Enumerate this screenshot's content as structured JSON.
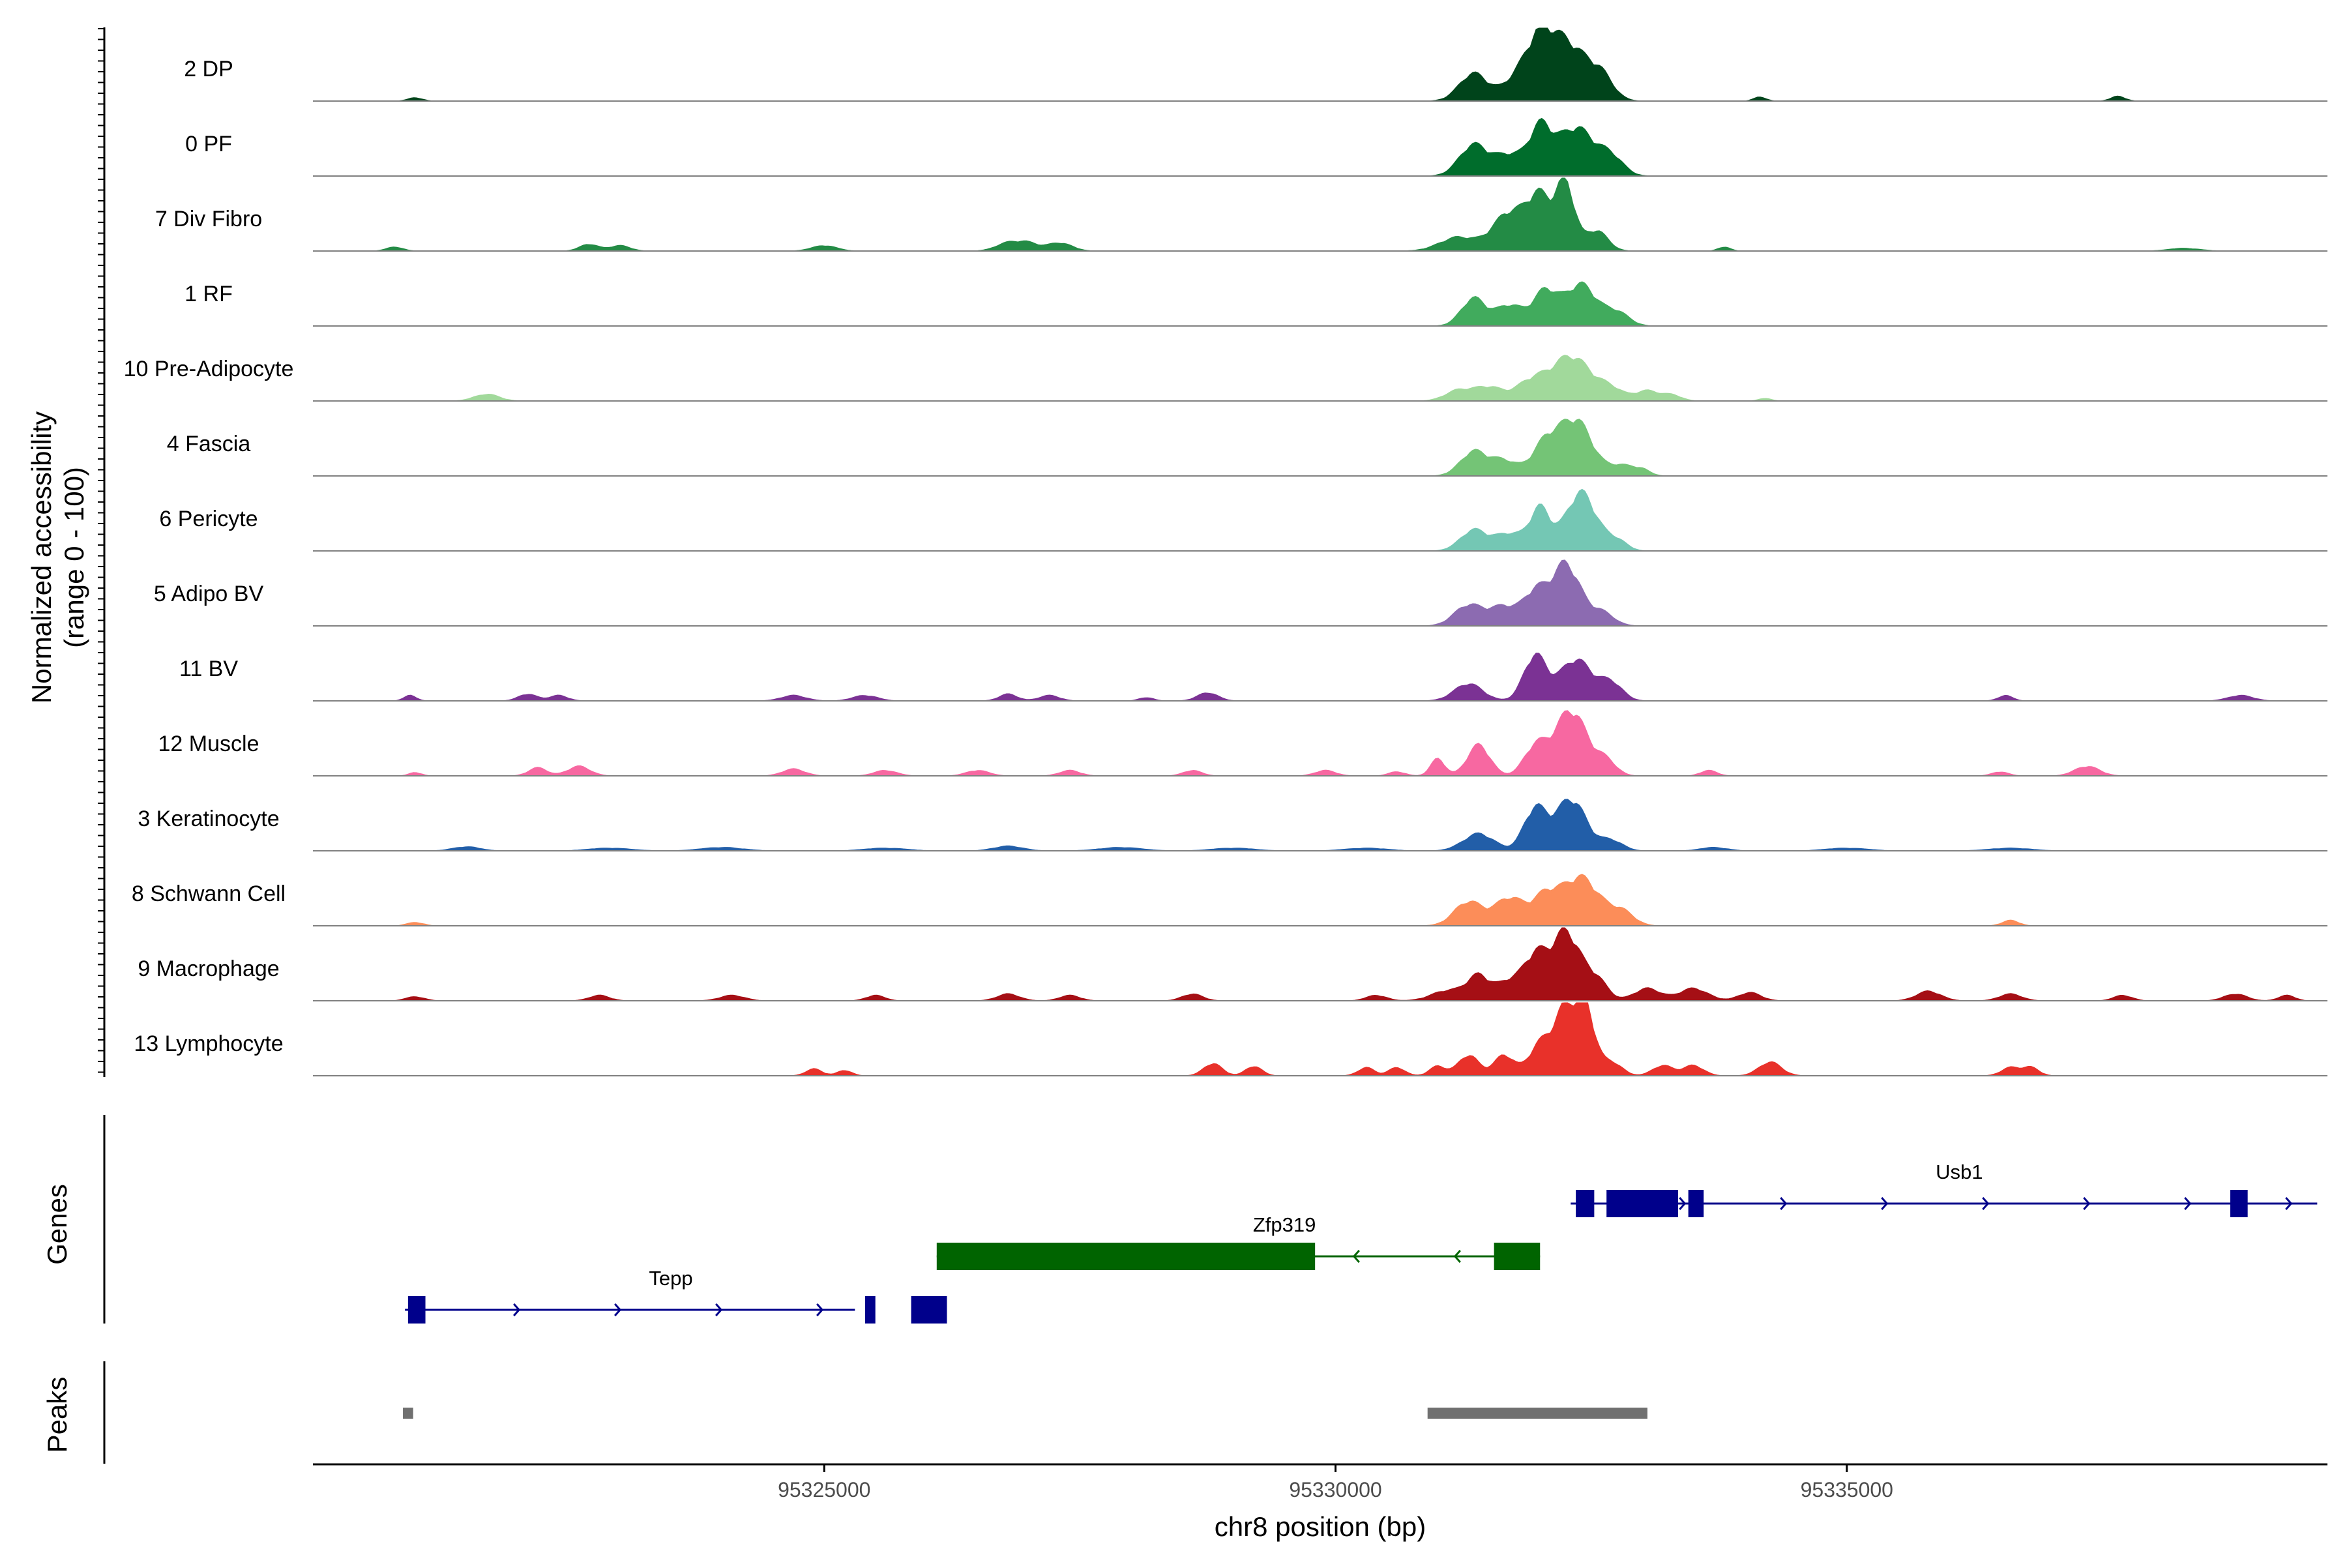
{
  "chart_data": {
    "type": "area",
    "title": "",
    "xlabel": "chr8 position (bp)",
    "ylabel_line1": "Normalized accessibility",
    "ylabel_line2": "(range 0 - 100)",
    "genes_label": "Genes",
    "peaks_label": "Peaks",
    "xlim": [
      95320000,
      95339700
    ],
    "ylim": [
      0,
      100
    ],
    "x_ticks": [
      95325000,
      95330000,
      95335000
    ],
    "x_tick_labels": [
      "95325000",
      "95330000",
      "95335000"
    ],
    "series": [
      {
        "name": "2 DP",
        "color": "#00441b",
        "bumps": [
          [
            95321000,
            5,
            70
          ],
          [
            95331350,
            40,
            140
          ],
          [
            95331800,
            35,
            150
          ],
          [
            95332000,
            55,
            120
          ],
          [
            95332250,
            85,
            200
          ],
          [
            95332600,
            30,
            120
          ],
          [
            95334150,
            6,
            60
          ],
          [
            95337650,
            7,
            70
          ]
        ]
      },
      {
        "name": "0 PF",
        "color": "#006d2c",
        "bumps": [
          [
            95331350,
            45,
            140
          ],
          [
            95331700,
            30,
            140
          ],
          [
            95332000,
            65,
            110
          ],
          [
            95332350,
            70,
            180
          ],
          [
            95332700,
            25,
            120
          ]
        ]
      },
      {
        "name": "7 Div Fibro",
        "color": "#238b45",
        "bumps": [
          [
            95320800,
            6,
            80
          ],
          [
            95322700,
            10,
            90
          ],
          [
            95323000,
            8,
            100
          ],
          [
            95325000,
            8,
            120
          ],
          [
            95326800,
            12,
            120
          ],
          [
            95327000,
            10,
            100
          ],
          [
            95327300,
            12,
            120
          ],
          [
            95331200,
            20,
            180
          ],
          [
            95331700,
            55,
            160
          ],
          [
            95332000,
            75,
            120
          ],
          [
            95332250,
            95,
            90
          ],
          [
            95332550,
            30,
            110
          ],
          [
            95333800,
            6,
            60
          ],
          [
            95338300,
            4,
            150
          ]
        ]
      },
      {
        "name": "1 RF",
        "color": "#41ab5d",
        "bumps": [
          [
            95331350,
            40,
            120
          ],
          [
            95331700,
            30,
            130
          ],
          [
            95332050,
            50,
            120
          ],
          [
            95332400,
            60,
            150
          ],
          [
            95332750,
            20,
            120
          ]
        ]
      },
      {
        "name": "10 Pre-Adipocyte",
        "color": "#a1d99b",
        "bumps": [
          [
            95321700,
            10,
            120
          ],
          [
            95331200,
            15,
            130
          ],
          [
            95331500,
            20,
            140
          ],
          [
            95331900,
            25,
            140
          ],
          [
            95332300,
            65,
            200
          ],
          [
            95332700,
            15,
            120
          ],
          [
            95333050,
            15,
            120
          ],
          [
            95333300,
            8,
            90
          ],
          [
            95334200,
            4,
            60
          ]
        ]
      },
      {
        "name": "4 Fascia",
        "color": "#74c476",
        "bumps": [
          [
            95331350,
            35,
            130
          ],
          [
            95331650,
            22,
            130
          ],
          [
            95332050,
            45,
            130
          ],
          [
            95332350,
            80,
            160
          ],
          [
            95332800,
            15,
            120
          ],
          [
            95333000,
            8,
            80
          ]
        ]
      },
      {
        "name": "6 Pericyte",
        "color": "#74c7b4",
        "bumps": [
          [
            95331350,
            30,
            130
          ],
          [
            95331700,
            25,
            140
          ],
          [
            95332000,
            60,
            100
          ],
          [
            95332400,
            85,
            150
          ],
          [
            95332750,
            15,
            100
          ]
        ]
      },
      {
        "name": "5 Adipo BV",
        "color": "#8c6bb1",
        "bumps": [
          [
            95331300,
            30,
            140
          ],
          [
            95331650,
            28,
            140
          ],
          [
            95331950,
            45,
            110
          ],
          [
            95332250,
            90,
            140
          ],
          [
            95332600,
            20,
            120
          ]
        ]
      },
      {
        "name": "11 BV",
        "color": "#7b3294",
        "bumps": [
          [
            95320950,
            8,
            60
          ],
          [
            95322100,
            10,
            90
          ],
          [
            95322400,
            8,
            90
          ],
          [
            95324700,
            8,
            120
          ],
          [
            95325400,
            8,
            120
          ],
          [
            95326800,
            10,
            90
          ],
          [
            95327200,
            8,
            100
          ],
          [
            95328150,
            5,
            70
          ],
          [
            95328750,
            12,
            100
          ],
          [
            95331300,
            25,
            140
          ],
          [
            95331950,
            65,
            110
          ],
          [
            95332350,
            60,
            160
          ],
          [
            95332700,
            25,
            110
          ],
          [
            95336550,
            8,
            70
          ],
          [
            95338850,
            8,
            120
          ]
        ]
      },
      {
        "name": "12 Muscle",
        "color": "#f768a1",
        "bumps": [
          [
            95321000,
            5,
            60
          ],
          [
            95322200,
            12,
            90
          ],
          [
            95322600,
            14,
            110
          ],
          [
            95324700,
            10,
            110
          ],
          [
            95325600,
            8,
            110
          ],
          [
            95326500,
            8,
            110
          ],
          [
            95327400,
            8,
            100
          ],
          [
            95328600,
            8,
            90
          ],
          [
            95329900,
            8,
            100
          ],
          [
            95330600,
            6,
            80
          ],
          [
            95331000,
            25,
            70
          ],
          [
            95331400,
            45,
            110
          ],
          [
            95331950,
            40,
            110
          ],
          [
            95332300,
            95,
            160
          ],
          [
            95332650,
            20,
            100
          ],
          [
            95333650,
            8,
            80
          ],
          [
            95336500,
            6,
            80
          ],
          [
            95337350,
            14,
            120
          ]
        ]
      },
      {
        "name": "3 Keratinocyte",
        "color": "#225ea8",
        "bumps": [
          [
            95321500,
            6,
            130
          ],
          [
            95322900,
            4,
            200
          ],
          [
            95324000,
            5,
            200
          ],
          [
            95325600,
            4,
            200
          ],
          [
            95326800,
            7,
            140
          ],
          [
            95327900,
            5,
            200
          ],
          [
            95329000,
            4,
            200
          ],
          [
            95330300,
            4,
            200
          ],
          [
            95331400,
            25,
            150
          ],
          [
            95331950,
            60,
            110
          ],
          [
            95332300,
            75,
            150
          ],
          [
            95332700,
            15,
            110
          ],
          [
            95333700,
            5,
            130
          ],
          [
            95335000,
            4,
            200
          ],
          [
            95336600,
            4,
            200
          ]
        ]
      },
      {
        "name": "8 Schwann Cell",
        "color": "#fc8d59",
        "bumps": [
          [
            95321000,
            5,
            80
          ],
          [
            95331300,
            35,
            140
          ],
          [
            95331700,
            40,
            140
          ],
          [
            95332050,
            40,
            130
          ],
          [
            95332400,
            70,
            180
          ],
          [
            95332800,
            20,
            120
          ],
          [
            95336600,
            8,
            80
          ]
        ]
      },
      {
        "name": "9 Macrophage",
        "color": "#a50f15",
        "bumps": [
          [
            95321000,
            6,
            90
          ],
          [
            95322800,
            8,
            100
          ],
          [
            95324100,
            8,
            120
          ],
          [
            95325500,
            8,
            90
          ],
          [
            95326800,
            10,
            110
          ],
          [
            95327400,
            8,
            100
          ],
          [
            95328600,
            10,
            100
          ],
          [
            95330400,
            8,
            100
          ],
          [
            95331100,
            15,
            160
          ],
          [
            95331400,
            35,
            110
          ],
          [
            95331700,
            28,
            120
          ],
          [
            95331950,
            60,
            110
          ],
          [
            95332250,
            100,
            140
          ],
          [
            95332550,
            30,
            110
          ],
          [
            95333050,
            18,
            130
          ],
          [
            95333500,
            18,
            140
          ],
          [
            95334050,
            12,
            110
          ],
          [
            95335800,
            14,
            120
          ],
          [
            95336600,
            10,
            110
          ],
          [
            95337700,
            8,
            90
          ],
          [
            95338800,
            10,
            110
          ],
          [
            95339300,
            8,
            80
          ]
        ]
      },
      {
        "name": "13 Lymphocyte",
        "color": "#e8312a",
        "bumps": [
          [
            95324900,
            10,
            80
          ],
          [
            95325200,
            8,
            70
          ],
          [
            95328800,
            18,
            90
          ],
          [
            95329200,
            14,
            80
          ],
          [
            95330300,
            12,
            80
          ],
          [
            95330600,
            12,
            80
          ],
          [
            95331000,
            14,
            80
          ],
          [
            95331300,
            30,
            100
          ],
          [
            95331650,
            30,
            100
          ],
          [
            95332000,
            45,
            110
          ],
          [
            95332250,
            95,
            110
          ],
          [
            95332450,
            90,
            90
          ],
          [
            95332700,
            20,
            100
          ],
          [
            95333200,
            15,
            100
          ],
          [
            95333500,
            15,
            100
          ],
          [
            95334250,
            20,
            110
          ],
          [
            95336600,
            12,
            90
          ],
          [
            95336800,
            12,
            80
          ]
        ]
      }
    ],
    "genes": [
      {
        "name": "Tepp",
        "strand": "+",
        "color": "#00008b",
        "row": 2,
        "start": 95320900,
        "end": 95325300,
        "label_x": 95323500,
        "exons": [
          [
            95320930,
            95321100
          ],
          [
            95325400,
            95325500
          ],
          [
            95325850,
            95326200
          ]
        ]
      },
      {
        "name": "Zfp319",
        "strand": "-",
        "color": "#006400",
        "row": 1,
        "start": 95326100,
        "end": 95332000,
        "label_x": 95329500,
        "exons": [
          [
            95326100,
            95329800
          ],
          [
            95331550,
            95332000
          ]
        ]
      },
      {
        "name": "Usb1",
        "strand": "+",
        "color": "#00008b",
        "row": 0,
        "start": 95332300,
        "end": 95339600,
        "label_x": 95336100,
        "exons": [
          [
            95332350,
            95332530
          ],
          [
            95332650,
            95333350
          ],
          [
            95333450,
            95333600
          ],
          [
            95338750,
            95338920
          ]
        ]
      }
    ],
    "peaks": [
      [
        95320880,
        95320980
      ],
      [
        95330900,
        95333050
      ]
    ],
    "peak_color": "#707070"
  }
}
